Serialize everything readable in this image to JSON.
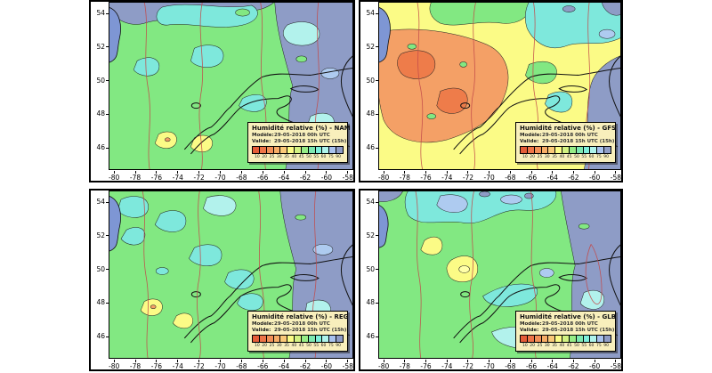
{
  "page": {
    "background": "#ffffff"
  },
  "axes": {
    "lat_ticks": [
      "54",
      "52",
      "50",
      "48",
      "46"
    ],
    "lon_ticks": [
      "-80",
      "-78",
      "-76",
      "-74",
      "-72",
      "-70",
      "-68",
      "-66",
      "-64",
      "-62",
      "-60",
      "-58"
    ]
  },
  "colorbar": {
    "values": [
      "10",
      "20",
      "25",
      "30",
      "35",
      "40",
      "45",
      "50",
      "55",
      "60",
      "75",
      "90"
    ],
    "colors": [
      "#e45c38",
      "#ee7448",
      "#f29058",
      "#f6ac66",
      "#fac878",
      "#fbfb86",
      "#d2f282",
      "#96ec86",
      "#7de8b0",
      "#7eeeda",
      "#aef4ec",
      "#a8c2ee",
      "#8e9cc6"
    ]
  },
  "legend_labels": {
    "model_key": "Modèle:",
    "valid_key": "Valide:"
  },
  "panels": [
    {
      "id": "nam",
      "title": "Humidité relative (%) - NAM",
      "model_value": "29-05-2018 00h UTC",
      "valid_value": "29-05-2018 15h UTC (15h)"
    },
    {
      "id": "gfs",
      "title": "Humidité relative (%) - GFS",
      "model_value": "29-05-2018 00h UTC",
      "valid_value": "29-05-2018 15h UTC (15h)"
    },
    {
      "id": "reg",
      "title": "Humidité relative (%) - REG",
      "model_value": "29-05-2018 00h UTC",
      "valid_value": "29-05-2018 15h UTC (15h)"
    },
    {
      "id": "glb",
      "title": "Humidité relative (%) - GLB",
      "model_value": "29-05-2018 00h UTC",
      "valid_value": "29-05-2018 15h UTC (15h)"
    }
  ],
  "map_colors": {
    "water_bay": "#7e96d4",
    "humid_slate": "#8e9cc6",
    "green": "#82e882",
    "cyan": "#7ee8dc",
    "light_cyan": "#b2f2ec",
    "pale_blue": "#aecbf0",
    "yellow": "#fbfb86",
    "orange": "#f4a066",
    "deep_orange": "#ee7c4a",
    "contour_red": "#c24a4a"
  }
}
